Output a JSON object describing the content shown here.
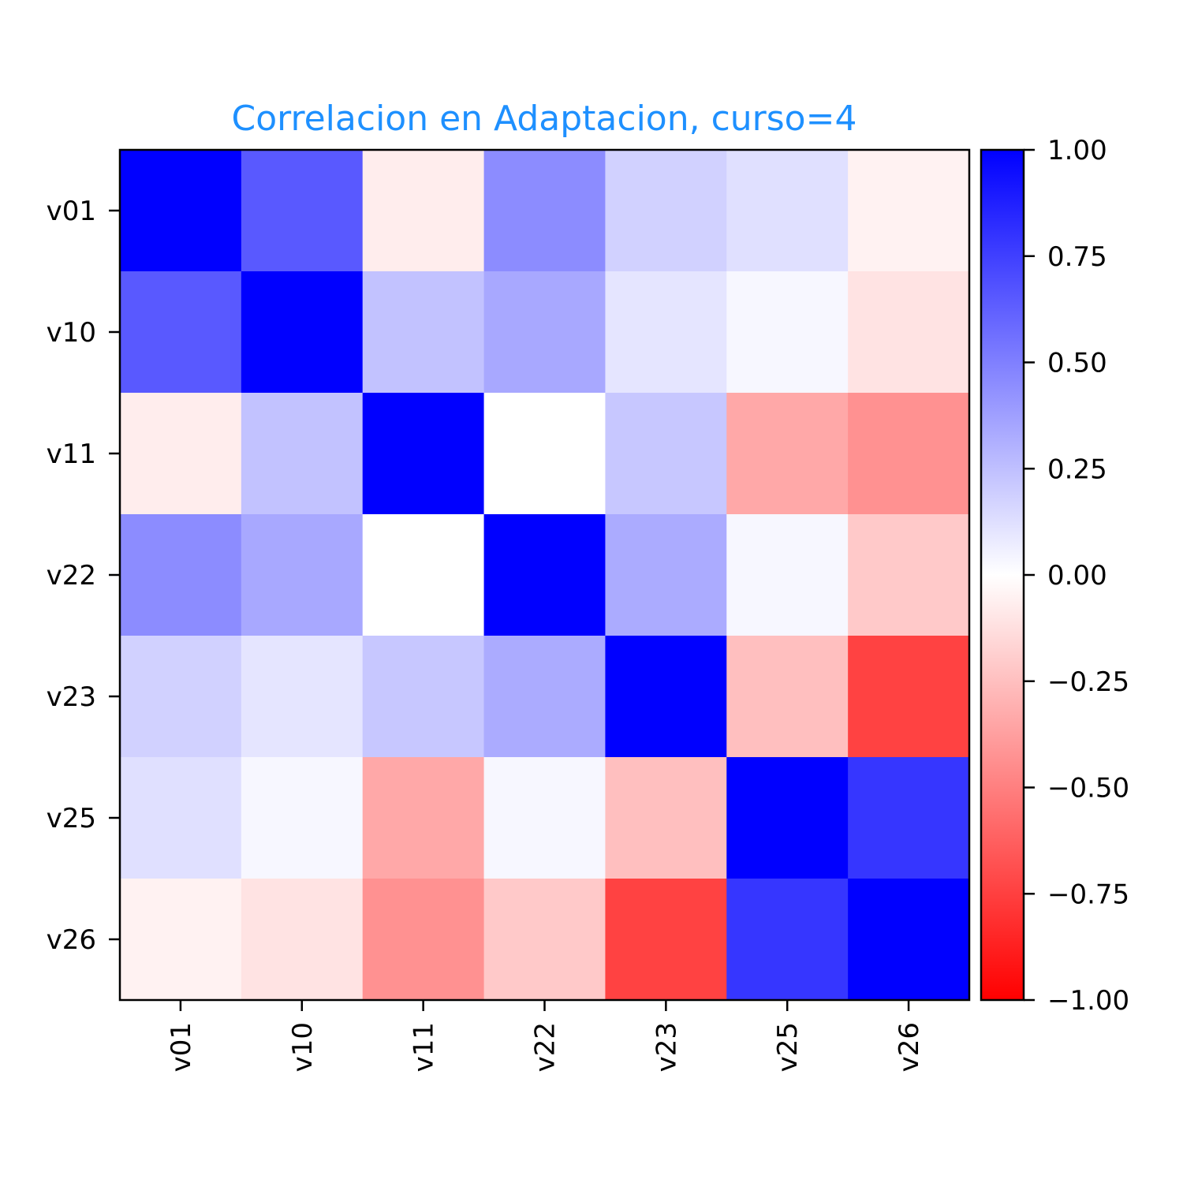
{
  "chart_data": {
    "type": "heatmap",
    "title": "Correlacion en Adaptacion, curso=4",
    "title_color": "#1E90FF",
    "xlabel": "",
    "ylabel": "",
    "x_categories": [
      "v01",
      "v10",
      "v11",
      "v22",
      "v23",
      "v25",
      "v26"
    ],
    "y_categories": [
      "v01",
      "v10",
      "v11",
      "v22",
      "v23",
      "v25",
      "v26"
    ],
    "values": [
      [
        1.0,
        0.65,
        -0.07,
        0.45,
        0.18,
        0.12,
        -0.05
      ],
      [
        0.65,
        1.0,
        0.24,
        0.34,
        0.1,
        0.03,
        -0.11
      ],
      [
        -0.07,
        0.24,
        1.0,
        0.0,
        0.22,
        -0.34,
        -0.43
      ],
      [
        0.45,
        0.34,
        0.0,
        1.0,
        0.33,
        0.03,
        -0.21
      ],
      [
        0.18,
        0.1,
        0.22,
        0.33,
        1.0,
        -0.25,
        -0.74
      ],
      [
        0.12,
        0.03,
        -0.34,
        0.03,
        -0.25,
        1.0,
        0.79
      ],
      [
        -0.05,
        -0.11,
        -0.43,
        -0.21,
        -0.74,
        0.79,
        1.0
      ]
    ],
    "colormap": "bwr_r",
    "color_low": "#FF0000",
    "color_mid": "#FFFFFF",
    "color_high": "#0000FF",
    "vmin": -1.0,
    "vmax": 1.0,
    "colorbar_ticks": [
      "1.00",
      "0.75",
      "0.50",
      "0.25",
      "0.00",
      "−0.25",
      "−0.50",
      "−0.75",
      "−1.00"
    ],
    "colorbar_tick_values": [
      1.0,
      0.75,
      0.5,
      0.25,
      0.0,
      -0.25,
      -0.5,
      -0.75,
      -1.0
    ],
    "legend": "colorbar-right",
    "grid": false
  }
}
